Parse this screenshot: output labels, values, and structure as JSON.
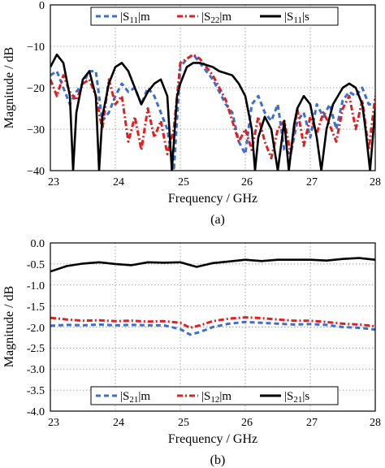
{
  "chart_data": [
    {
      "type": "line",
      "caption": "(a)",
      "xlabel": "Frequency / GHz",
      "ylabel": "Magnitude / dB",
      "xlim": [
        23,
        28
      ],
      "ylim": [
        -40,
        0
      ],
      "x_ticks": [
        "23",
        "24",
        "25",
        "26",
        "27",
        "28"
      ],
      "y_ticks": [
        "0",
        "−10",
        "−20",
        "−30",
        "−40"
      ],
      "grid": true,
      "legend_position": "top",
      "series": [
        {
          "name": "|S11|m",
          "legend_main": "|S",
          "legend_sub": "11",
          "legend_tail": "|m",
          "color": "#3a6fd0",
          "style": "dashed",
          "x": [
            23.0,
            23.1,
            23.2,
            23.3,
            23.4,
            23.5,
            23.6,
            23.7,
            23.8,
            23.9,
            24.0,
            24.1,
            24.2,
            24.3,
            24.4,
            24.5,
            24.6,
            24.7,
            24.8,
            24.9,
            25.0,
            25.1,
            25.2,
            25.3,
            25.4,
            25.5,
            25.6,
            25.7,
            25.8,
            25.9,
            26.0,
            26.1,
            26.2,
            26.3,
            26.4,
            26.5,
            26.6,
            26.7,
            26.8,
            26.9,
            27.0,
            27.1,
            27.2,
            27.3,
            27.4,
            27.5,
            27.6,
            27.7,
            27.8,
            27.9,
            28.0
          ],
          "y": [
            -17,
            -16,
            -20,
            -24,
            -21,
            -19,
            -16,
            -16,
            -28,
            -26,
            -22,
            -19,
            -21,
            -20,
            -24,
            -20,
            -22,
            -26,
            -30,
            -40,
            -15,
            -13,
            -12,
            -14,
            -16,
            -18,
            -21,
            -24,
            -26,
            -33,
            -36,
            -24,
            -22,
            -26,
            -28,
            -24,
            -35,
            -36,
            -28,
            -26,
            -32,
            -24,
            -27,
            -24,
            -30,
            -23,
            -21,
            -22,
            -20,
            -24,
            -24
          ]
        },
        {
          "name": "|S22|m",
          "legend_main": "|S",
          "legend_sub": "22",
          "legend_tail": "|m",
          "color": "#e02020",
          "style": "dashdot",
          "x": [
            23.0,
            23.1,
            23.2,
            23.3,
            23.4,
            23.5,
            23.6,
            23.7,
            23.8,
            23.9,
            24.0,
            24.1,
            24.2,
            24.3,
            24.4,
            24.5,
            24.6,
            24.7,
            24.8,
            24.9,
            25.0,
            25.1,
            25.2,
            25.3,
            25.4,
            25.5,
            25.6,
            25.7,
            25.8,
            25.9,
            26.0,
            26.1,
            26.2,
            26.3,
            26.4,
            26.5,
            26.6,
            26.7,
            26.8,
            26.9,
            27.0,
            27.1,
            27.2,
            27.3,
            27.4,
            27.5,
            27.6,
            27.7,
            27.8,
            27.9,
            28.0
          ],
          "y": [
            -18,
            -22,
            -17,
            -21,
            -23,
            -19,
            -18,
            -22,
            -30,
            -18,
            -24,
            -22,
            -33,
            -27,
            -35,
            -25,
            -32,
            -28,
            -36,
            -30,
            -14,
            -13,
            -12,
            -13,
            -15,
            -17,
            -20,
            -23,
            -28,
            -33,
            -30,
            -35,
            -27,
            -33,
            -37,
            -30,
            -28,
            -36,
            -25,
            -34,
            -27,
            -31,
            -26,
            -29,
            -33,
            -25,
            -22,
            -30,
            -23,
            -35,
            -22
          ]
        },
        {
          "name": "|S11|s",
          "legend_main": "|S",
          "legend_sub": "11",
          "legend_tail": "|s",
          "color": "#000000",
          "style": "solid",
          "x": [
            23.0,
            23.1,
            23.2,
            23.3,
            23.35,
            23.4,
            23.5,
            23.6,
            23.7,
            23.75,
            23.8,
            23.9,
            24.0,
            24.1,
            24.2,
            24.3,
            24.4,
            24.5,
            24.6,
            24.7,
            24.8,
            24.87,
            24.95,
            25.0,
            25.1,
            25.2,
            25.3,
            25.4,
            25.5,
            25.6,
            25.7,
            25.8,
            25.9,
            26.0,
            26.1,
            26.15,
            26.2,
            26.3,
            26.4,
            26.5,
            26.6,
            26.67,
            26.75,
            26.8,
            26.9,
            27.0,
            27.1,
            27.17,
            27.25,
            27.35,
            27.5,
            27.6,
            27.7,
            27.8,
            27.85,
            27.92,
            28.0
          ],
          "y": [
            -15,
            -12,
            -14,
            -22,
            -40,
            -26,
            -18,
            -16,
            -22,
            -40,
            -27,
            -19,
            -15,
            -14,
            -16,
            -20,
            -24,
            -21,
            -19,
            -18,
            -22,
            -40,
            -22,
            -19,
            -15,
            -14,
            -14,
            -14.5,
            -15,
            -16,
            -16.5,
            -17,
            -19,
            -22,
            -30,
            -40,
            -32,
            -27,
            -30,
            -40,
            -28,
            -40,
            -29,
            -25,
            -22,
            -24,
            -32,
            -40,
            -30,
            -24,
            -20,
            -19,
            -20,
            -24,
            -30,
            -40,
            -25
          ]
        }
      ]
    },
    {
      "type": "line",
      "caption": "(b)",
      "xlabel": "Frequency / GHz",
      "ylabel": "Magnitude / dB",
      "xlim": [
        23,
        28
      ],
      "ylim": [
        -4.0,
        0.0
      ],
      "x_ticks": [
        "23",
        "24",
        "25",
        "26",
        "27",
        "28"
      ],
      "y_ticks": [
        "0.0",
        "-0.5",
        "-1.0",
        "-1.5",
        "-2.0",
        "-2.5",
        "-3.0",
        "-3.5",
        "-4.0"
      ],
      "grid": true,
      "legend_position": "bottom",
      "series": [
        {
          "name": "|S21|m",
          "legend_main": "|S",
          "legend_sub": "21",
          "legend_tail": "|m",
          "color": "#3a6fd0",
          "style": "dashed",
          "x": [
            23.0,
            23.25,
            23.5,
            23.75,
            24.0,
            24.25,
            24.5,
            24.75,
            25.0,
            25.15,
            25.3,
            25.5,
            25.75,
            26.0,
            26.25,
            26.5,
            26.75,
            27.0,
            27.25,
            27.5,
            27.75,
            28.0
          ],
          "y": [
            -1.97,
            -1.95,
            -1.96,
            -1.94,
            -1.96,
            -1.95,
            -1.96,
            -1.96,
            -2.05,
            -2.18,
            -2.12,
            -2.0,
            -1.92,
            -1.88,
            -1.9,
            -1.92,
            -1.94,
            -1.93,
            -1.95,
            -2.0,
            -2.02,
            -2.06
          ]
        },
        {
          "name": "|S12|m",
          "legend_main": "|S",
          "legend_sub": "12",
          "legend_tail": "|m",
          "color": "#e02020",
          "style": "dashdot",
          "x": [
            23.0,
            23.25,
            23.5,
            23.75,
            24.0,
            24.25,
            24.5,
            24.75,
            25.0,
            25.15,
            25.3,
            25.5,
            25.75,
            26.0,
            26.25,
            26.5,
            26.75,
            27.0,
            27.25,
            27.5,
            27.75,
            28.0
          ],
          "y": [
            -1.78,
            -1.82,
            -1.85,
            -1.84,
            -1.86,
            -1.85,
            -1.87,
            -1.86,
            -1.9,
            -2.02,
            -1.96,
            -1.86,
            -1.8,
            -1.77,
            -1.79,
            -1.82,
            -1.85,
            -1.85,
            -1.88,
            -1.92,
            -1.94,
            -1.98
          ]
        },
        {
          "name": "|S21|s",
          "legend_main": "|S",
          "legend_sub": "21",
          "legend_tail": "|s",
          "color": "#000000",
          "style": "solid",
          "x": [
            23.0,
            23.25,
            23.5,
            23.75,
            24.0,
            24.25,
            24.5,
            24.75,
            25.0,
            25.25,
            25.5,
            25.75,
            26.0,
            26.25,
            26.5,
            26.75,
            27.0,
            27.25,
            27.5,
            27.75,
            28.0
          ],
          "y": [
            -0.68,
            -0.55,
            -0.49,
            -0.46,
            -0.5,
            -0.53,
            -0.46,
            -0.47,
            -0.46,
            -0.57,
            -0.48,
            -0.44,
            -0.4,
            -0.43,
            -0.4,
            -0.4,
            -0.4,
            -0.42,
            -0.38,
            -0.36,
            -0.4
          ]
        }
      ]
    }
  ]
}
